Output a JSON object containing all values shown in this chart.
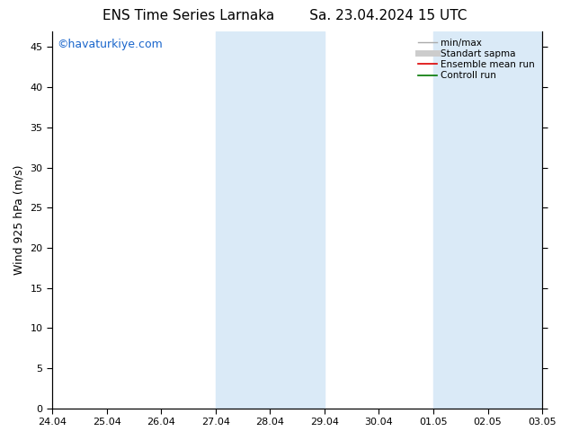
{
  "title_left": "ENS Time Series Larnaka",
  "title_right": "Sa. 23.04.2024 15 UTC",
  "ylabel": "Wind 925 hPa (m/s)",
  "ylim": [
    0,
    47
  ],
  "yticks": [
    0,
    5,
    10,
    15,
    20,
    25,
    30,
    35,
    40,
    45
  ],
  "xtick_labels": [
    "24.04",
    "25.04",
    "26.04",
    "27.04",
    "28.04",
    "29.04",
    "30.04",
    "01.05",
    "02.05",
    "03.05"
  ],
  "n_days": 10,
  "weekend_bands": [
    {
      "start": 3,
      "end": 5
    },
    {
      "start": 7,
      "end": 9
    }
  ],
  "band_color": "#daeaf7",
  "watermark": "©havaturkiye.com",
  "watermark_color": "#1a66cc",
  "legend_items": [
    {
      "label": "min/max",
      "color": "#aaaaaa",
      "lw": 1.0
    },
    {
      "label": "Standart sapma",
      "color": "#cccccc",
      "lw": 5.0
    },
    {
      "label": "Ensemble mean run",
      "color": "#dd0000",
      "lw": 1.2
    },
    {
      "label": "Controll run",
      "color": "#007700",
      "lw": 1.2
    }
  ],
  "background_color": "#ffffff",
  "title_fontsize": 11,
  "label_fontsize": 9,
  "tick_fontsize": 8,
  "watermark_fontsize": 9
}
